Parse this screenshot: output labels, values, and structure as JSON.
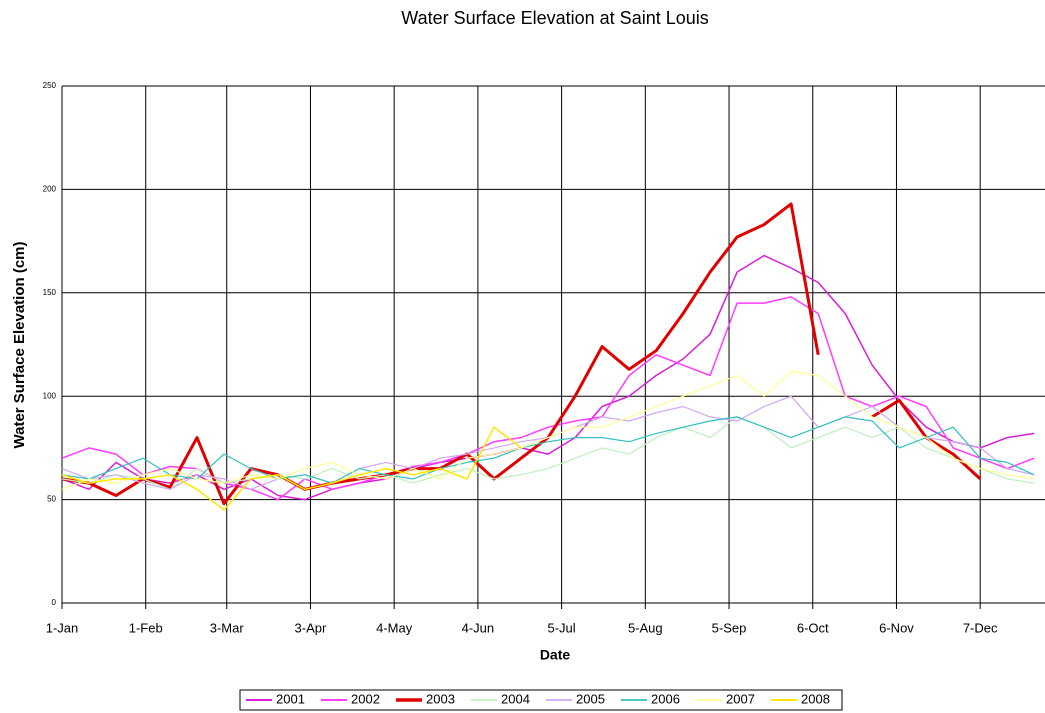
{
  "chart_data": {
    "type": "line",
    "title": "Water Surface Elevation at Saint Louis",
    "xlabel": "Date",
    "ylabel": "Water Surface Elevation (cm)",
    "x": [
      0,
      10,
      20,
      30,
      40,
      50,
      60,
      70,
      80,
      90,
      100,
      110,
      120,
      130,
      140,
      150,
      160,
      170,
      180,
      190,
      200,
      210,
      220,
      230,
      240,
      250,
      260,
      270,
      280,
      290,
      300,
      310,
      320,
      330,
      340,
      350,
      360
    ],
    "xlim": [
      0,
      364
    ],
    "xticks": [
      {
        "value": 0,
        "label": "1-Jan"
      },
      {
        "value": 31,
        "label": "1-Feb"
      },
      {
        "value": 61,
        "label": "3-Mar"
      },
      {
        "value": 92,
        "label": "3-Apr"
      },
      {
        "value": 123,
        "label": "4-May"
      },
      {
        "value": 154,
        "label": "4-Jun"
      },
      {
        "value": 185,
        "label": "5-Jul"
      },
      {
        "value": 216,
        "label": "5-Aug"
      },
      {
        "value": 247,
        "label": "5-Sep"
      },
      {
        "value": 278,
        "label": "6-Oct"
      },
      {
        "value": 309,
        "label": "6-Nov"
      },
      {
        "value": 340,
        "label": "7-Dec"
      }
    ],
    "ylim": [
      0,
      250
    ],
    "yticks": [
      0,
      50,
      100,
      150,
      200,
      250
    ],
    "grid": true,
    "legend": "bottom",
    "series": [
      {
        "name": "2001",
        "color": "#d81ed8",
        "width": 1.5,
        "values": [
          60,
          55,
          68,
          60,
          58,
          62,
          55,
          60,
          52,
          50,
          55,
          58,
          60,
          65,
          68,
          70,
          72,
          75,
          72,
          80,
          95,
          100,
          110,
          118,
          130,
          160,
          168,
          162,
          155,
          140,
          115,
          98,
          85,
          78,
          75,
          80,
          82
        ]
      },
      {
        "name": "2002",
        "color": "#ff3cff",
        "width": 1.5,
        "values": [
          70,
          75,
          72,
          62,
          66,
          65,
          58,
          55,
          50,
          60,
          55,
          58,
          62,
          66,
          68,
          72,
          78,
          80,
          85,
          88,
          90,
          110,
          120,
          115,
          110,
          145,
          145,
          148,
          140,
          100,
          95,
          100,
          95,
          75,
          70,
          65,
          70
        ]
      },
      {
        "name": "2003",
        "color": "#e00000",
        "width": 3,
        "values": [
          60,
          58,
          52,
          60,
          56,
          80,
          48,
          65,
          62,
          55,
          58,
          60,
          62,
          65,
          65,
          72,
          60,
          70,
          80,
          100,
          124,
          113,
          122,
          140,
          160,
          177,
          183,
          193,
          120,
          null,
          90,
          98,
          80,
          72,
          60,
          null,
          null
        ]
      },
      {
        "name": "2004",
        "color": "#bff0bf",
        "width": 1.2,
        "values": [
          60,
          58,
          62,
          60,
          55,
          65,
          58,
          60,
          62,
          60,
          65,
          60,
          62,
          58,
          62,
          65,
          60,
          62,
          65,
          70,
          75,
          72,
          80,
          85,
          80,
          90,
          85,
          75,
          80,
          85,
          80,
          85,
          75,
          70,
          65,
          60,
          58
        ]
      },
      {
        "name": "2005",
        "color": "#d2a6f0",
        "width": 1.2,
        "values": [
          65,
          60,
          62,
          58,
          55,
          62,
          60,
          55,
          60,
          62,
          58,
          65,
          68,
          65,
          70,
          72,
          75,
          78,
          80,
          85,
          90,
          88,
          92,
          95,
          90,
          88,
          95,
          100,
          85,
          90,
          95,
          85,
          80,
          78,
          75,
          65,
          62
        ]
      },
      {
        "name": "2006",
        "color": "#33c0c0",
        "width": 1.2,
        "values": [
          62,
          60,
          65,
          70,
          62,
          60,
          72,
          65,
          60,
          62,
          58,
          65,
          62,
          60,
          65,
          68,
          70,
          75,
          78,
          80,
          80,
          78,
          82,
          85,
          88,
          90,
          85,
          80,
          85,
          90,
          88,
          75,
          80,
          85,
          70,
          68,
          62
        ]
      },
      {
        "name": "2007",
        "color": "#ffff90",
        "width": 1.2,
        "values": [
          55,
          60,
          58,
          62,
          65,
          60,
          58,
          62,
          60,
          65,
          68,
          62,
          60,
          65,
          60,
          70,
          72,
          75,
          80,
          85,
          85,
          90,
          95,
          100,
          105,
          110,
          100,
          112,
          110,
          100,
          90,
          85,
          80,
          70,
          65,
          62,
          60
        ]
      },
      {
        "name": "2008",
        "color": "#ffe600",
        "width": 1.5,
        "values": [
          62,
          58,
          60,
          60,
          62,
          55,
          45,
          60,
          62,
          55,
          58,
          62,
          65,
          62,
          65,
          60,
          85,
          75,
          null,
          null,
          null,
          null,
          null,
          null,
          null,
          null,
          null,
          null,
          null,
          null,
          null,
          null,
          null,
          null,
          null,
          null,
          null
        ]
      }
    ]
  }
}
